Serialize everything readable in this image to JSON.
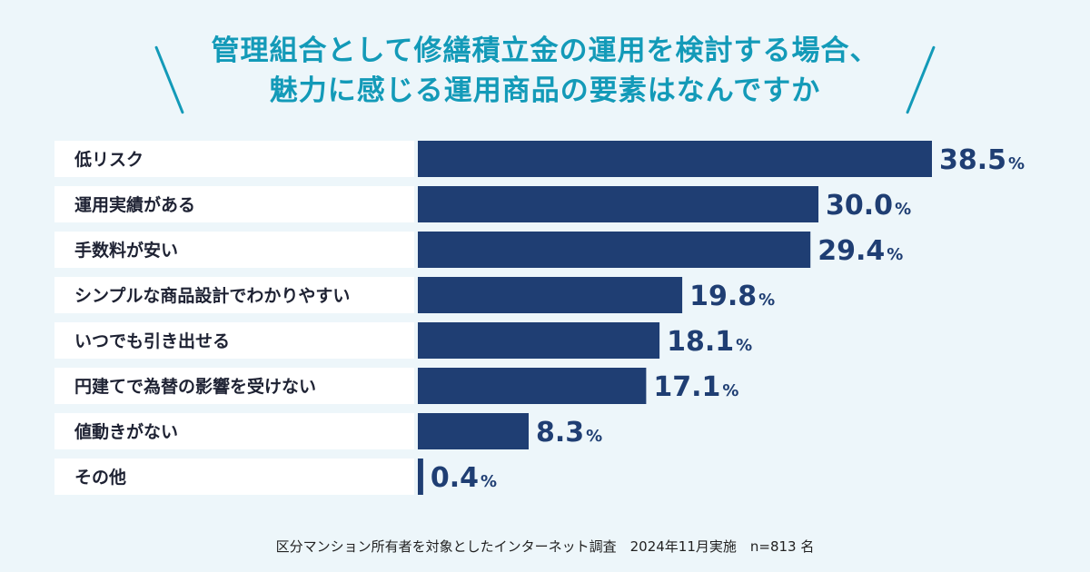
{
  "chart_data": {
    "type": "bar",
    "orientation": "horizontal",
    "title": "管理組合として修繕積立金の運用を検討する場合、魅力に感じる運用商品の要素はなんですか",
    "title_lines": [
      "管理組合として修繕積立金の運用を検討する場合、",
      "魅力に感じる運用商品の要素はなんですか"
    ],
    "categories": [
      "低リスク",
      "運用実績がある",
      "手数料が安い",
      "シンプルな商品設計でわかりやすい",
      "いつでも引き出せる",
      "円建てで為替の影響を受けない",
      "値動きがない",
      "その他"
    ],
    "values": [
      38.5,
      30.0,
      29.4,
      19.8,
      18.1,
      17.1,
      8.3,
      0.4
    ],
    "value_labels": [
      "38.5",
      "30.0",
      "29.4",
      "19.8",
      "18.1",
      "17.1",
      "8.3",
      "0.4"
    ],
    "unit": "%",
    "xlim": [
      0,
      38.5
    ],
    "grid": false,
    "legend": "none",
    "bar_color": "#1f3e73",
    "label_bg_color": "#ffffff"
  },
  "footer": "区分マンション所有者を対象としたインターネット調査　2024年11月実施　n=813 名",
  "colors": {
    "background": "#edf6fa",
    "title": "#139ab8",
    "bar": "#1f3e73",
    "label_text": "#1e2233"
  }
}
